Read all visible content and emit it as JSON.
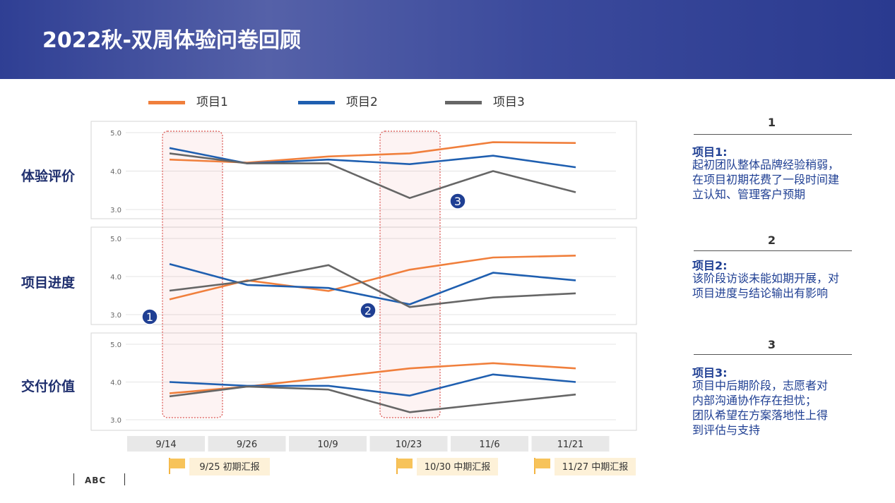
{
  "page": {
    "title": "2022秋-双周体验问卷回顾"
  },
  "legend": [
    {
      "label": "项目1",
      "color": "#f07f3c"
    },
    {
      "label": "项目2",
      "color": "#1f5fb0"
    },
    {
      "label": "项目3",
      "color": "#666666"
    }
  ],
  "metrics": [
    "体验评价",
    "项目进度",
    "交付价值"
  ],
  "chart_data": {
    "type": "line",
    "categories": [
      "9/14",
      "9/26",
      "10/9",
      "10/23",
      "11/6",
      "11/21"
    ],
    "ylim": [
      3.0,
      5.0
    ],
    "yticks": [
      "5.0",
      "4.0",
      "3.0"
    ],
    "panels": [
      {
        "name": "体验评价",
        "series": [
          {
            "name": "项目1",
            "values": [
              4.3,
              4.22,
              4.38,
              4.46,
              4.75,
              4.73
            ]
          },
          {
            "name": "项目2",
            "values": [
              4.6,
              4.2,
              4.3,
              4.18,
              4.4,
              4.1
            ]
          },
          {
            "name": "项目3",
            "values": [
              4.46,
              4.2,
              4.2,
              3.3,
              4.0,
              3.45
            ]
          }
        ]
      },
      {
        "name": "项目进度",
        "series": [
          {
            "name": "项目1",
            "values": [
              3.4,
              3.9,
              3.62,
              4.18,
              4.5,
              4.55
            ]
          },
          {
            "name": "项目2",
            "values": [
              4.33,
              3.78,
              3.7,
              3.27,
              4.1,
              3.9
            ]
          },
          {
            "name": "项目3",
            "values": [
              3.63,
              3.88,
              4.3,
              3.2,
              3.45,
              3.56
            ]
          }
        ]
      },
      {
        "name": "交付价值",
        "series": [
          {
            "name": "项目1",
            "values": [
              3.7,
              3.88,
              4.12,
              4.36,
              4.5,
              4.36
            ]
          },
          {
            "name": "项目2",
            "values": [
              4.0,
              3.9,
              3.9,
              3.64,
              4.2,
              4.0
            ]
          },
          {
            "name": "项目3",
            "values": [
              3.62,
              3.88,
              3.8,
              3.2,
              3.44,
              3.67
            ]
          }
        ]
      }
    ],
    "annotations": [
      "1",
      "2",
      "3"
    ],
    "milestones": [
      "9/25 初期汇报",
      "10/30 中期汇报",
      "11/27 中期汇报"
    ]
  },
  "notes": [
    {
      "num": "1",
      "title": "项目1:",
      "text": "起初团队整体品牌经验稍弱，\n在项目初期花费了一段时间建\n立认知、管理客户预期"
    },
    {
      "num": "2",
      "title": "项目2:",
      "text": "该阶段访谈未能如期开展，对\n项目进度与结论输出有影响"
    },
    {
      "num": "3",
      "title": "项目3:",
      "text": "项目中后期阶段，志愿者对\n内部沟通协作存在担忧；\n团队希望在方案落地性上得\n到评估与支持"
    }
  ],
  "logo": {
    "text": "ABC"
  }
}
